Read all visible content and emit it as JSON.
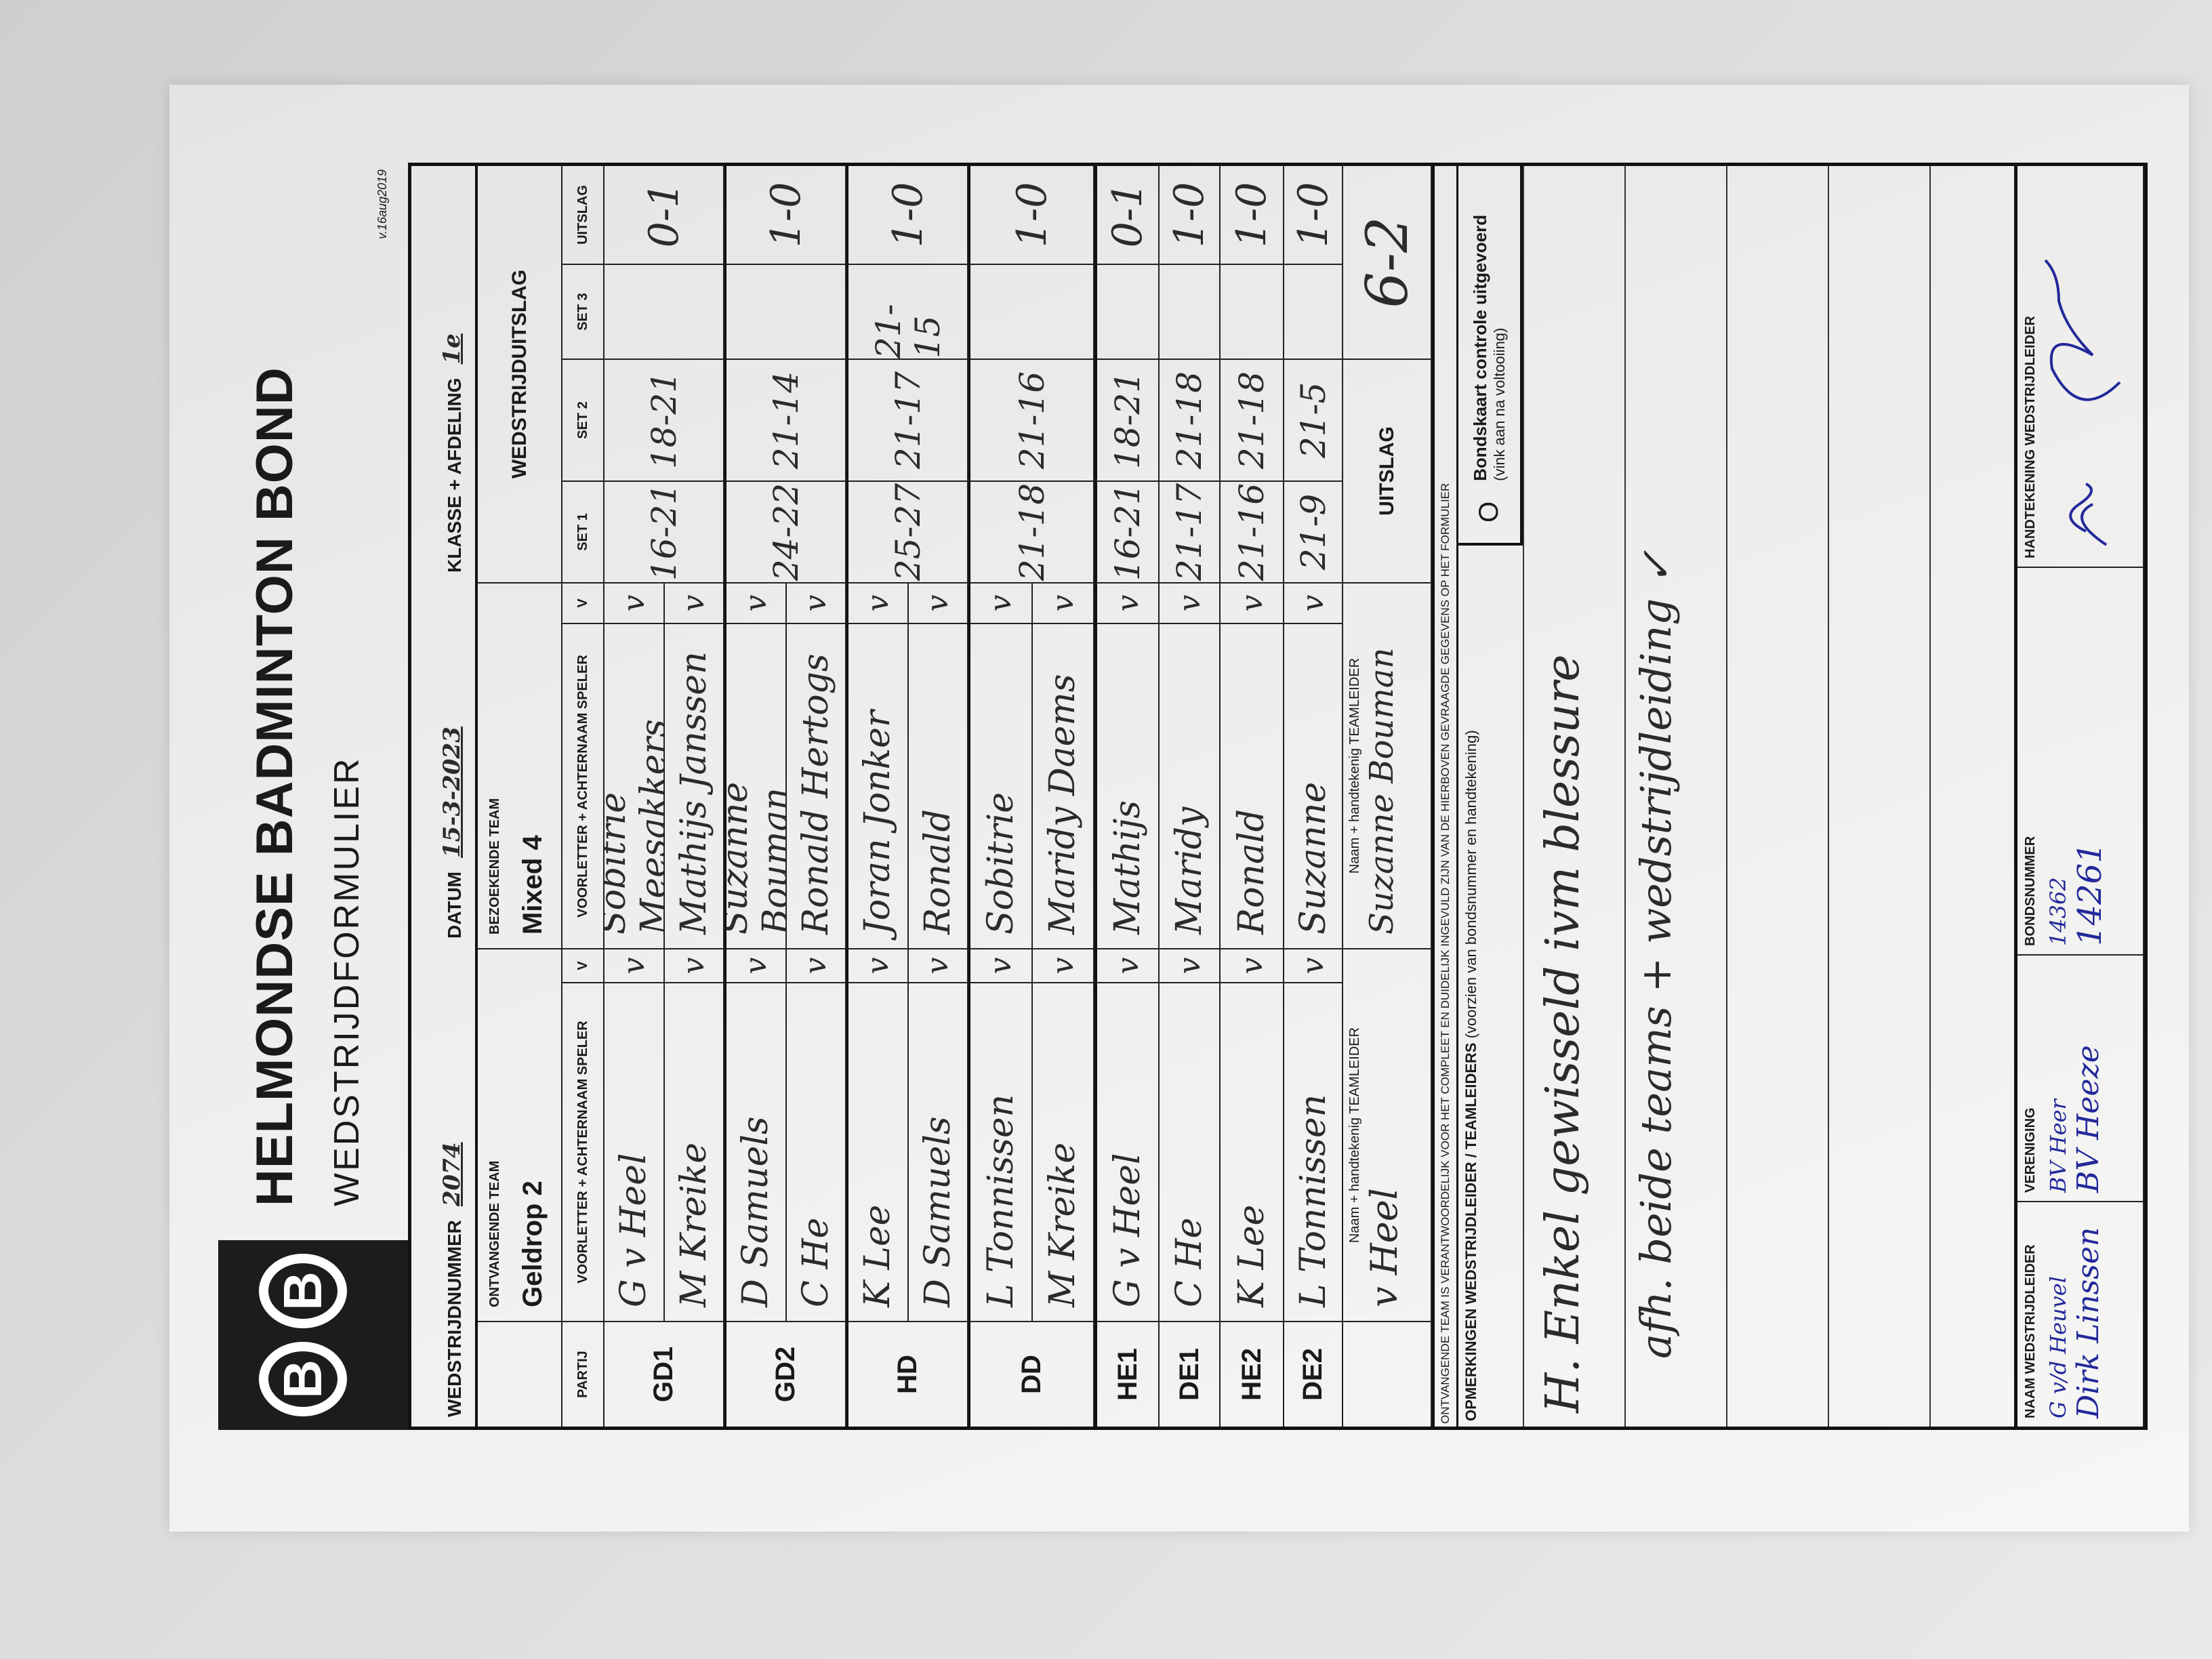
{
  "header": {
    "title": "HELMONDSE BADMINTON BOND",
    "subtitle": "WEDSTRIJDFORMULIER",
    "version": "v.16aug2019",
    "logo_letters": "B B"
  },
  "meta": {
    "match_number_label": "WEDSTRIJDNUMMER",
    "match_number": "2074",
    "date_label": "DATUM",
    "date": "15-3-2023",
    "class_label": "KLASSE + AFDELING",
    "class": "1e"
  },
  "teams": {
    "home_label": "ONTVANGENDE TEAM",
    "home": "Geldrop 2",
    "away_label": "BEZOEKENDE TEAM",
    "away": "Mixed 4",
    "result_label": "WEDSTRIJDUITSLAG"
  },
  "columns": {
    "partij": "PARTIJ",
    "player": "VOORLETTER + ACHTERNAAM SPELER",
    "check": "V",
    "set1": "SET 1",
    "set2": "SET 2",
    "set3": "SET 3",
    "result": "UITSLAG"
  },
  "matches": [
    {
      "partij": "GD1",
      "home": [
        "G v Heel",
        "M Kreike"
      ],
      "away": [
        "Sobitrie Meesakkers",
        "Mathijs Janssen"
      ],
      "checks_home": [
        "v",
        "v"
      ],
      "checks_away": [
        "v",
        "v"
      ],
      "set1": "16-21",
      "set2": "18-21",
      "set3": "",
      "result": "0-1"
    },
    {
      "partij": "GD2",
      "home": [
        "D Samuels",
        "C He"
      ],
      "away": [
        "Suzanne Bouman",
        "Ronald Hertogs"
      ],
      "checks_home": [
        "v",
        "v"
      ],
      "checks_away": [
        "v",
        "v"
      ],
      "set1": "24-22",
      "set2": "21-14",
      "set3": "",
      "result": "1-0"
    },
    {
      "partij": "HD",
      "home": [
        "K Lee",
        "D Samuels"
      ],
      "away": [
        "Joran Jonker",
        "Ronald"
      ],
      "checks_home": [
        "v",
        "v"
      ],
      "checks_away": [
        "v",
        "v"
      ],
      "set1": "25-27",
      "set2": "21-17",
      "set3": "21-15",
      "result": "1-0"
    },
    {
      "partij": "DD",
      "home": [
        "L Tonnissen",
        "M Kreike"
      ],
      "away": [
        "Sobitrie",
        "Maridy Daems"
      ],
      "checks_home": [
        "v",
        "v"
      ],
      "checks_away": [
        "v",
        "v"
      ],
      "set1": "21-18",
      "set2": "21-16",
      "set3": "",
      "result": "1-0"
    },
    {
      "partij": "HE1",
      "home": [
        "G v Heel"
      ],
      "away": [
        "Mathijs"
      ],
      "checks_home": [
        "v"
      ],
      "checks_away": [
        "v"
      ],
      "set1": "16-21",
      "set2": "18-21",
      "set3": "",
      "result": "0-1"
    },
    {
      "partij": "DE1",
      "home": [
        "C He"
      ],
      "away": [
        "Maridy"
      ],
      "checks_home": [
        "v"
      ],
      "checks_away": [
        "v"
      ],
      "set1": "21-17",
      "set2": "21-18",
      "set3": "",
      "result": "1-0"
    },
    {
      "partij": "HE2",
      "home": [
        "K Lee"
      ],
      "away": [
        "Ronald"
      ],
      "checks_home": [
        "v"
      ],
      "checks_away": [
        "v"
      ],
      "set1": "21-16",
      "set2": "21-18",
      "set3": "",
      "result": "1-0"
    },
    {
      "partij": "DE2",
      "home": [
        "L Tonnissen"
      ],
      "away": [
        "Suzanne"
      ],
      "checks_home": [
        "v"
      ],
      "checks_away": [
        "v"
      ],
      "set1": "21-9",
      "set2": "21-5",
      "set3": "",
      "result": "1-0"
    }
  ],
  "leaders": {
    "label": "Naam + handtekenig TEAMLEIDER",
    "home": "v Heel",
    "away": "Suzanne Bouman",
    "total_label": "UITSLAG",
    "total": "6-2"
  },
  "responsibility": "ONTVANGENDE TEAM IS VERANTWOORDELIJK VOOR HET COMPLEET EN DUIDELIJK INGEVULD ZIJN VAN DE HIERBOVEN GEVRAAGDE GEGEVENS OP HET FORMULIER",
  "remarks": {
    "label": "OPMERKINGEN WEDSTRIJDLEIDER / TEAMLEIDERS",
    "label_note": "(voorzien van bondsnummer en handtekening)",
    "checkbox_symbol": "O",
    "checkbox_label": "Bondskaart controle uitgevoerd",
    "checkbox_note": "(vink aan na voltooiing)",
    "lines": [
      "H. Enkel gewisseld ivm blessure",
      "afh. beide teams + wedstrijdleiding ✓"
    ]
  },
  "officials": {
    "headers": [
      "NAAM WEDSTRIJDLEIDER",
      "VERENIGING",
      "BONDSNUMMER",
      "HANDTEKENING WEDSTRIJDLEIDER"
    ],
    "rows": [
      {
        "name": "G v/d Heuvel",
        "club": "BV Heer",
        "number": "14362"
      },
      {
        "name": "Dirk Linssen",
        "club": "BV Heeze",
        "number": "14261"
      }
    ]
  },
  "colors": {
    "ink": "#2b2b2b",
    "blue_ink": "#23299a",
    "paper": "#efefed",
    "border": "#111111"
  }
}
